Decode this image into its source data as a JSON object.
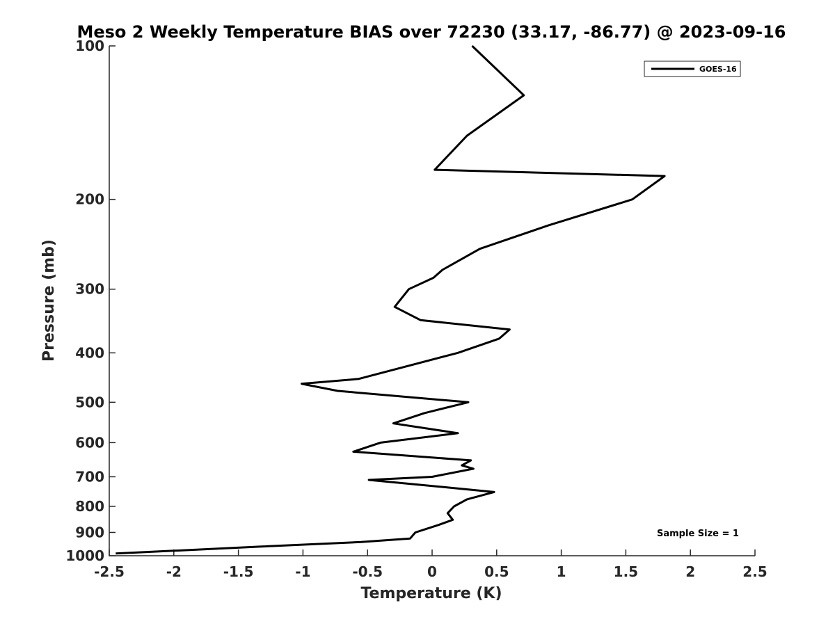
{
  "chart_data": {
    "type": "line",
    "title": "Meso 2 Weekly Temperature BIAS over 72230 (33.17, -86.77) @ 2023-09-16",
    "xlabel": "Temperature (K)",
    "ylabel": "Pressure (mb)",
    "xlim": [
      -2.5,
      2.5
    ],
    "ylim": [
      100,
      1000
    ],
    "y_scale": "log",
    "y_reversed": true,
    "x_ticks": [
      "-2.5",
      "-2",
      "-1.5",
      "-1",
      "-0.5",
      "0",
      "0.5",
      "1",
      "1.5",
      "2",
      "2.5"
    ],
    "y_ticks": [
      "100",
      "200",
      "300",
      "400",
      "500",
      "600",
      "700",
      "800",
      "900",
      "1000"
    ],
    "grid": false,
    "legend": {
      "position": "top-right",
      "entries": [
        "GOES-16"
      ]
    },
    "annotation": "Sample Size = 1",
    "series": [
      {
        "name": "GOES-16",
        "color": "#000000",
        "points": [
          [
            0.31,
            100
          ],
          [
            0.71,
            125
          ],
          [
            0.27,
            150
          ],
          [
            0.02,
            175
          ],
          [
            1.8,
            180
          ],
          [
            1.55,
            200
          ],
          [
            0.9,
            225
          ],
          [
            0.37,
            250
          ],
          [
            0.08,
            275
          ],
          [
            0.01,
            285
          ],
          [
            -0.18,
            300
          ],
          [
            -0.29,
            325
          ],
          [
            -0.09,
            345
          ],
          [
            0.6,
            360
          ],
          [
            0.52,
            375
          ],
          [
            0.2,
            400
          ],
          [
            -0.57,
            450
          ],
          [
            -1.01,
            460
          ],
          [
            -0.73,
            475
          ],
          [
            0.28,
            500
          ],
          [
            -0.06,
            525
          ],
          [
            -0.3,
            550
          ],
          [
            0.2,
            575
          ],
          [
            -0.4,
            600
          ],
          [
            -0.61,
            625
          ],
          [
            0.3,
            650
          ],
          [
            0.23,
            665
          ],
          [
            0.32,
            675
          ],
          [
            0.0,
            700
          ],
          [
            -0.49,
            710
          ],
          [
            0.13,
            735
          ],
          [
            0.48,
            750
          ],
          [
            0.27,
            775
          ],
          [
            0.17,
            800
          ],
          [
            0.12,
            825
          ],
          [
            0.16,
            850
          ],
          [
            0.05,
            870
          ],
          [
            -0.13,
            900
          ],
          [
            -0.17,
            925
          ],
          [
            -0.55,
            940
          ],
          [
            -1.35,
            960
          ],
          [
            -2.45,
            990
          ]
        ]
      }
    ]
  }
}
